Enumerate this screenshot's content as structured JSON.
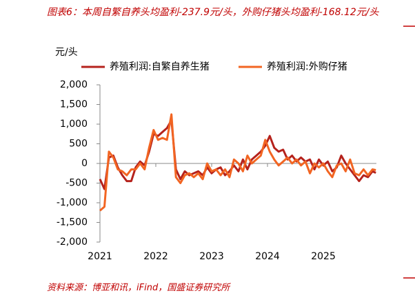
{
  "chart_data": {
    "type": "line",
    "title": "图表6：本周自繁自养头均盈利-237.9元/头，外购仔猪头均盈利-168.12元/头",
    "y_label": "元/头",
    "source": "资料来源：博亚和讯，iFind，国盛证券研究所",
    "x": [
      2021.0,
      2021.08,
      2021.16,
      2021.24,
      2021.32,
      2021.4,
      2021.48,
      2021.56,
      2021.64,
      2021.72,
      2021.8,
      2021.88,
      2021.96,
      2022.04,
      2022.12,
      2022.2,
      2022.28,
      2022.36,
      2022.44,
      2022.52,
      2022.6,
      2022.68,
      2022.76,
      2022.84,
      2022.92,
      2023.0,
      2023.08,
      2023.16,
      2023.24,
      2023.32,
      2023.4,
      2023.48,
      2023.56,
      2023.64,
      2023.72,
      2023.8,
      2023.88,
      2023.96,
      2024.04,
      2024.12,
      2024.2,
      2024.28,
      2024.36,
      2024.44,
      2024.52,
      2024.6,
      2024.68,
      2024.76,
      2024.84,
      2024.92,
      2025.0,
      2025.08,
      2025.16,
      2025.24,
      2025.32,
      2025.4,
      2025.48,
      2025.56,
      2025.64,
      2025.72,
      2025.8,
      2025.88,
      2025.94
    ],
    "series": [
      {
        "name": "养殖利润:自繁自养生猪",
        "color": "#b5221c",
        "values": [
          -400,
          -650,
          150,
          200,
          -100,
          -300,
          -450,
          -450,
          -100,
          50,
          -50,
          300,
          750,
          700,
          800,
          900,
          1100,
          -150,
          -400,
          -200,
          -300,
          -250,
          -200,
          -300,
          -100,
          -250,
          -150,
          -100,
          -300,
          -200,
          -50,
          -200,
          100,
          -150,
          100,
          200,
          300,
          450,
          700,
          400,
          300,
          350,
          100,
          200,
          50,
          150,
          50,
          100,
          -150,
          100,
          -50,
          50,
          -200,
          -100,
          200,
          0,
          -150,
          -300,
          -450,
          -300,
          -350,
          -200,
          -237.9
        ]
      },
      {
        "name": "养殖利润:外购仔猪",
        "color": "#f26522",
        "values": [
          -1200,
          -1100,
          300,
          150,
          -150,
          -200,
          -300,
          -150,
          -150,
          0,
          -150,
          400,
          850,
          600,
          650,
          600,
          1250,
          -350,
          -500,
          -300,
          -250,
          -350,
          -250,
          -400,
          0,
          -200,
          -150,
          -300,
          -150,
          -350,
          100,
          0,
          -200,
          200,
          0,
          100,
          200,
          600,
          300,
          100,
          -50,
          50,
          150,
          0,
          100,
          -50,
          50,
          -250,
          0,
          -100,
          0,
          -200,
          -350,
          -50,
          0,
          -200,
          100,
          -250,
          -300,
          -150,
          -300,
          -150,
          -168.12
        ]
      }
    ],
    "xlim": [
      2021,
      2025.95
    ],
    "xticks": [
      2021,
      2022,
      2023,
      2024,
      2025
    ],
    "ylim": [
      -2000,
      2000
    ],
    "yticks": [
      {
        "value": -2000,
        "label": "-2,000"
      },
      {
        "value": -1500,
        "label": "-1,500"
      },
      {
        "value": -1000,
        "label": "-1,000"
      },
      -500,
      0,
      500,
      {
        "value": 1000,
        "label": "1,000"
      },
      {
        "value": 1500,
        "label": "1,500"
      },
      {
        "value": 2000,
        "label": "2,000"
      }
    ]
  }
}
